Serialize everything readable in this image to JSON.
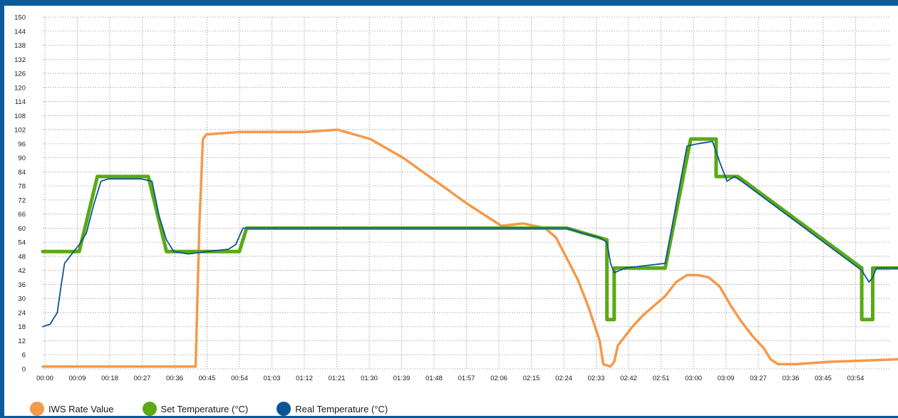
{
  "chart_data": {
    "type": "line",
    "title": "",
    "xlabel": "",
    "ylabel": "",
    "ylim": [
      0,
      150
    ],
    "grid": true,
    "legend_position": "bottom-left",
    "y_ticks": [
      "0",
      "6",
      "12",
      "18",
      "24",
      "30",
      "36",
      "42",
      "48",
      "54",
      "60",
      "66",
      "72",
      "78",
      "84",
      "90",
      "96",
      "102",
      "108",
      "114",
      "120",
      "126",
      "132",
      "138",
      "144",
      "150"
    ],
    "x_ticks": [
      "00:00",
      "00:09",
      "00:18",
      "00:27",
      "00:36",
      "00:45",
      "00:54",
      "01:03",
      "01:12",
      "01:21",
      "01:30",
      "01:39",
      "01:48",
      "01:57",
      "02:06",
      "02:15",
      "02:24",
      "02:33",
      "02:42",
      "02:51",
      "03:00",
      "03:09",
      "03:27",
      "03:36",
      "03:45",
      "03:54"
    ],
    "x_range_minutes": [
      0,
      233
    ],
    "series": [
      {
        "name": "IWS  Rate Value",
        "color": "#f5994a",
        "points": [
          [
            "00:00",
            1
          ],
          [
            "00:09",
            1
          ],
          [
            "00:18",
            1
          ],
          [
            "00:27",
            1
          ],
          [
            "00:36",
            1
          ],
          [
            "00:42",
            1
          ],
          [
            "00:43",
            60
          ],
          [
            "00:44",
            98
          ],
          [
            "00:45",
            100
          ],
          [
            "00:54",
            101
          ],
          [
            "01:03",
            101
          ],
          [
            "01:12",
            101
          ],
          [
            "01:21",
            102
          ],
          [
            "01:30",
            98
          ],
          [
            "01:39",
            90
          ],
          [
            "01:48",
            80
          ],
          [
            "01:57",
            70
          ],
          [
            "02:06",
            61
          ],
          [
            "02:09",
            61.5
          ],
          [
            "02:12",
            62
          ],
          [
            "02:15",
            61
          ],
          [
            "02:18",
            60
          ],
          [
            "02:21",
            56
          ],
          [
            "02:24",
            47
          ],
          [
            "02:27",
            38
          ],
          [
            "02:30",
            26
          ],
          [
            "02:33",
            12
          ],
          [
            "02:34",
            2
          ],
          [
            "02:36",
            1
          ],
          [
            "02:37",
            3
          ],
          [
            "02:38",
            10
          ],
          [
            "02:40",
            14
          ],
          [
            "02:42",
            18
          ],
          [
            "02:45",
            23
          ],
          [
            "02:48",
            27
          ],
          [
            "02:51",
            31
          ],
          [
            "02:54",
            37
          ],
          [
            "02:57",
            40
          ],
          [
            "03:00",
            40
          ],
          [
            "03:03",
            39
          ],
          [
            "03:06",
            35
          ],
          [
            "03:09",
            27
          ],
          [
            "03:12",
            20
          ],
          [
            "03:15",
            14
          ],
          [
            "03:18",
            9
          ],
          [
            "03:20",
            4
          ],
          [
            "03:22",
            2
          ],
          [
            "03:27",
            2
          ],
          [
            "03:36",
            3
          ],
          [
            "03:45",
            3.5
          ],
          [
            "03:54",
            4
          ],
          [
            "04:00",
            4.5
          ],
          [
            "04:03",
            5
          ]
        ]
      },
      {
        "name": "Set Temperature (°C)",
        "color": "#5aaa14",
        "points": [
          [
            "00:00",
            50
          ],
          [
            "00:10",
            50
          ],
          [
            "00:15",
            82
          ],
          [
            "00:29",
            82
          ],
          [
            "00:34",
            50
          ],
          [
            "00:54",
            50
          ],
          [
            "00:56",
            60
          ],
          [
            "02:24",
            60
          ],
          [
            "02:35",
            55
          ],
          [
            "02:35",
            21
          ],
          [
            "02:37",
            21
          ],
          [
            "02:37",
            43
          ],
          [
            "02:45",
            43
          ],
          [
            "02:51",
            43
          ],
          [
            "02:58",
            98
          ],
          [
            "03:05",
            98
          ],
          [
            "03:05",
            82
          ],
          [
            "03:11",
            82
          ],
          [
            "03:45",
            43
          ],
          [
            "03:45",
            21
          ],
          [
            "03:48",
            21
          ],
          [
            "03:48",
            43
          ],
          [
            "04:03",
            43
          ]
        ]
      },
      {
        "name": "Real Temperature (°C)",
        "color": "#0d5496",
        "points": [
          [
            "00:00",
            18
          ],
          [
            "00:02",
            19
          ],
          [
            "00:04",
            24
          ],
          [
            "00:05",
            35
          ],
          [
            "00:06",
            45
          ],
          [
            "00:08",
            49
          ],
          [
            "00:10",
            53
          ],
          [
            "00:12",
            58
          ],
          [
            "00:14",
            70
          ],
          [
            "00:16",
            80
          ],
          [
            "00:18",
            81
          ],
          [
            "00:27",
            81
          ],
          [
            "00:30",
            80
          ],
          [
            "00:32",
            65
          ],
          [
            "00:34",
            55
          ],
          [
            "00:36",
            50
          ],
          [
            "00:40",
            49
          ],
          [
            "00:45",
            50
          ],
          [
            "00:51",
            51
          ],
          [
            "00:53",
            53
          ],
          [
            "00:55",
            60
          ],
          [
            "02:24",
            60
          ],
          [
            "02:28",
            58
          ],
          [
            "02:33",
            56
          ],
          [
            "02:35",
            54
          ],
          [
            "02:36",
            45
          ],
          [
            "02:37",
            41
          ],
          [
            "02:40",
            43
          ],
          [
            "02:51",
            45
          ],
          [
            "02:57",
            95
          ],
          [
            "03:00",
            96
          ],
          [
            "03:04",
            97
          ],
          [
            "03:06",
            88
          ],
          [
            "03:08",
            80
          ],
          [
            "03:10",
            82
          ],
          [
            "03:12",
            80
          ],
          [
            "03:45",
            42
          ],
          [
            "03:47",
            37
          ],
          [
            "03:48",
            39
          ],
          [
            "03:49",
            43
          ],
          [
            "04:03",
            43
          ]
        ]
      }
    ]
  }
}
